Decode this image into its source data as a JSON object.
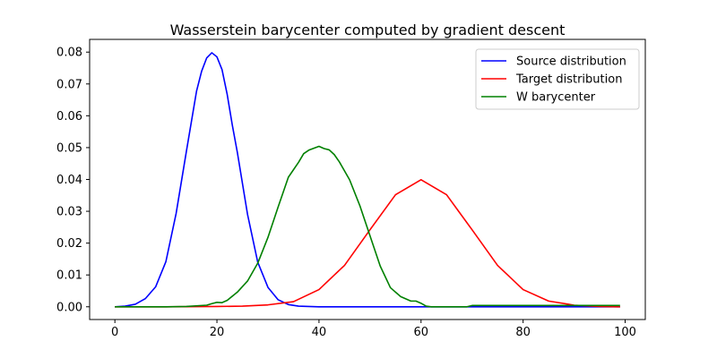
{
  "chart_data": {
    "type": "line",
    "title": "Wasserstein barycenter computed by gradient descent",
    "xlabel": "",
    "ylabel": "",
    "xlim": [
      -4.95,
      103.95
    ],
    "ylim": [
      -0.004,
      0.084
    ],
    "xticks": [
      0,
      20,
      40,
      60,
      80,
      100
    ],
    "xtick_labels": [
      "0",
      "20",
      "40",
      "60",
      "80",
      "100"
    ],
    "yticks": [
      0.0,
      0.01,
      0.02,
      0.03,
      0.04,
      0.05,
      0.06,
      0.07,
      0.08
    ],
    "ytick_labels": [
      "0.00",
      "0.01",
      "0.02",
      "0.03",
      "0.04",
      "0.05",
      "0.06",
      "0.07",
      "0.08"
    ],
    "grid": false,
    "legend_position": "top-right",
    "series": [
      {
        "name": "Source distribution",
        "color": "#0000ff",
        "x": [
          0,
          2,
          4,
          6,
          8,
          10,
          12,
          14,
          16,
          17,
          18,
          19,
          20,
          21,
          22,
          23,
          24,
          26,
          28,
          30,
          32,
          34,
          36,
          40,
          50,
          60,
          70,
          80,
          90,
          99
        ],
        "y": [
          0.0,
          0.0002,
          0.0008,
          0.0026,
          0.0063,
          0.0142,
          0.0293,
          0.0487,
          0.0677,
          0.074,
          0.0782,
          0.0798,
          0.0785,
          0.0745,
          0.0668,
          0.0572,
          0.0485,
          0.029,
          0.014,
          0.0061,
          0.0022,
          0.0007,
          0.0002,
          0.0,
          0.0,
          0.0,
          0.0,
          0.0,
          0.0,
          0.0
        ]
      },
      {
        "name": "Target distribution",
        "color": "#ff0000",
        "x": [
          0,
          10,
          20,
          25,
          30,
          35,
          40,
          45,
          50,
          55,
          60,
          65,
          70,
          75,
          80,
          85,
          90,
          95,
          99
        ],
        "y": [
          0.0,
          0.0,
          0.0001,
          0.0002,
          0.0006,
          0.0016,
          0.0054,
          0.013,
          0.0242,
          0.0352,
          0.0399,
          0.0352,
          0.0242,
          0.013,
          0.0054,
          0.0018,
          0.0005,
          0.0001,
          0.0
        ]
      },
      {
        "name": "W barycenter",
        "color": "#008000",
        "x": [
          0,
          10,
          14,
          18,
          19,
          20,
          21,
          22,
          24,
          26,
          28,
          30,
          32,
          34,
          36,
          37,
          38,
          39,
          40,
          41,
          42,
          43,
          44,
          46,
          48,
          50,
          52,
          54,
          56,
          58,
          59,
          60,
          61,
          62,
          66,
          69,
          70,
          80,
          90,
          99
        ],
        "y": [
          0.0,
          0.0,
          0.0001,
          0.0005,
          0.001,
          0.0014,
          0.0013,
          0.002,
          0.0046,
          0.0081,
          0.0137,
          0.0218,
          0.0314,
          0.0407,
          0.0454,
          0.0481,
          0.0492,
          0.0498,
          0.0504,
          0.0497,
          0.0493,
          0.0478,
          0.0455,
          0.0399,
          0.0318,
          0.0223,
          0.0128,
          0.006,
          0.0032,
          0.0018,
          0.0018,
          0.0011,
          0.0002,
          0.0,
          0.0,
          0.0,
          0.0004,
          0.0004,
          0.0004,
          0.0004
        ]
      }
    ]
  }
}
